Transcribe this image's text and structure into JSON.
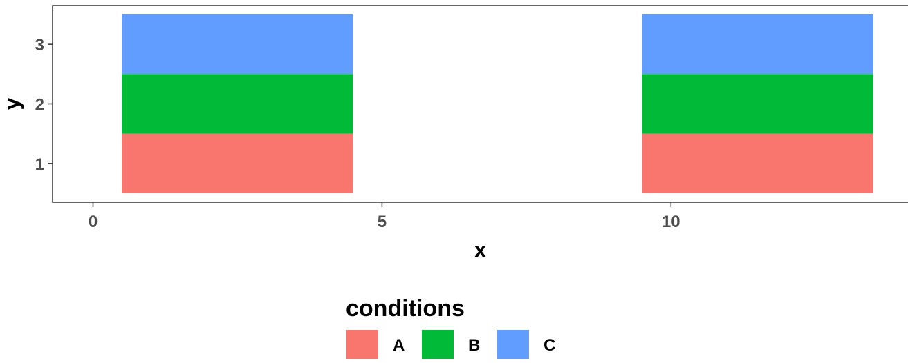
{
  "chart_data": {
    "type": "heatmap",
    "title": "",
    "xlabel": "x",
    "ylabel": "y",
    "xlim": [
      -0.7,
      14.1
    ],
    "ylim": [
      0.35,
      3.65
    ],
    "x_ticks": [
      0,
      5,
      10
    ],
    "y_ticks": [
      1,
      2,
      3
    ],
    "grid": false,
    "legend": {
      "title": "conditions",
      "position": "bottom",
      "entries": [
        {
          "name": "A",
          "color": "#F8766D"
        },
        {
          "name": "B",
          "color": "#00BA38"
        },
        {
          "name": "C",
          "color": "#619CFF"
        }
      ]
    },
    "tiles": [
      {
        "xmin": 0.5,
        "xmax": 4.5,
        "y": 1,
        "condition": "A"
      },
      {
        "xmin": 0.5,
        "xmax": 4.5,
        "y": 2,
        "condition": "B"
      },
      {
        "xmin": 0.5,
        "xmax": 4.5,
        "y": 3,
        "condition": "C"
      },
      {
        "xmin": 9.5,
        "xmax": 13.5,
        "y": 1,
        "condition": "A"
      },
      {
        "xmin": 9.5,
        "xmax": 13.5,
        "y": 2,
        "condition": "B"
      },
      {
        "xmin": 9.5,
        "xmax": 13.5,
        "y": 3,
        "condition": "C"
      }
    ]
  }
}
